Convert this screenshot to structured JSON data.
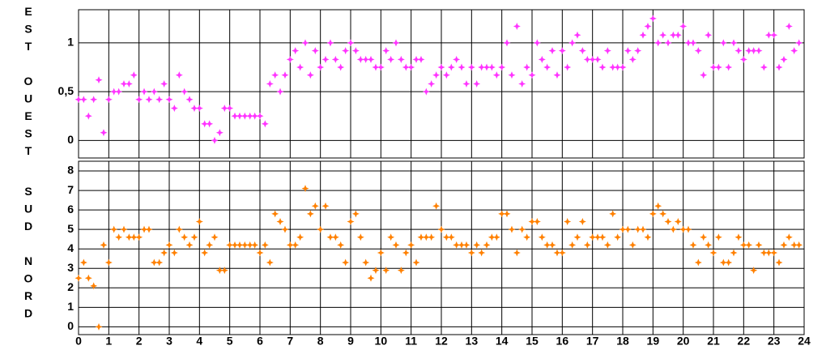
{
  "chart_data": [
    {
      "type": "scatter",
      "axis_label": [
        "EST",
        "OUEST"
      ],
      "xlim": [
        0,
        24
      ],
      "xticks": [
        0,
        1,
        2,
        3,
        4,
        5,
        6,
        7,
        8,
        9,
        10,
        11,
        12,
        13,
        14,
        15,
        16,
        17,
        18,
        19,
        20,
        21,
        22,
        23,
        24
      ],
      "ylim": [
        -0.18,
        1.34
      ],
      "yticks": [
        0,
        {
          "value": 0.5,
          "label": "0,5"
        },
        1
      ],
      "grid": true,
      "series": [
        {
          "color": "#ff33ff",
          "x": [
            0,
            0.17,
            0.33,
            0.5,
            0.67,
            0.83,
            1,
            1.17,
            1.33,
            1.5,
            1.67,
            1.83,
            2,
            2.17,
            2.33,
            2.5,
            2.67,
            2.83,
            3,
            3.17,
            3.33,
            3.5,
            3.67,
            3.83,
            4,
            4.17,
            4.33,
            4.5,
            4.67,
            4.83,
            5,
            5.17,
            5.33,
            5.5,
            5.67,
            5.83,
            6,
            6.17,
            6.33,
            6.5,
            6.67,
            6.83,
            7,
            7.17,
            7.33,
            7.5,
            7.67,
            7.83,
            8,
            8.17,
            8.33,
            8.5,
            8.67,
            8.83,
            9,
            9.17,
            9.33,
            9.5,
            9.67,
            9.83,
            10,
            10.17,
            10.33,
            10.5,
            10.67,
            10.83,
            11,
            11.17,
            11.33,
            11.5,
            11.67,
            11.83,
            12,
            12.17,
            12.33,
            12.5,
            12.67,
            12.83,
            13,
            13.17,
            13.33,
            13.5,
            13.67,
            13.83,
            14,
            14.17,
            14.33,
            14.5,
            14.67,
            14.83,
            15,
            15.17,
            15.33,
            15.5,
            15.67,
            15.83,
            16,
            16.17,
            16.33,
            16.5,
            16.67,
            16.83,
            17,
            17.17,
            17.33,
            17.5,
            17.67,
            17.83,
            18,
            18.17,
            18.33,
            18.5,
            18.67,
            18.83,
            19,
            19.17,
            19.33,
            19.5,
            19.67,
            19.83,
            20,
            20.17,
            20.33,
            20.5,
            20.67,
            20.83,
            21,
            21.17,
            21.33,
            21.5,
            21.67,
            21.83,
            22,
            22.17,
            22.33,
            22.5,
            22.67,
            22.83,
            23,
            23.17,
            23.33,
            23.5,
            23.67,
            23.83
          ],
          "values": [
            0.42,
            0.42,
            0.25,
            0.42,
            0.62,
            0.08,
            0.42,
            0.5,
            0.5,
            0.58,
            0.58,
            0.67,
            0.42,
            0.5,
            0.42,
            0.5,
            0.42,
            0.58,
            0.42,
            0.33,
            0.67,
            0.5,
            0.42,
            0.33,
            0.33,
            0.17,
            0.17,
            0,
            0.08,
            0.33,
            0.33,
            0.25,
            0.25,
            0.25,
            0.25,
            0.25,
            0.25,
            0.17,
            0.58,
            0.67,
            0.5,
            0.67,
            0.83,
            0.92,
            0.75,
            1,
            0.67,
            0.92,
            0.75,
            0.83,
            1,
            0.83,
            0.75,
            0.92,
            1,
            0.92,
            0.83,
            0.83,
            0.83,
            0.75,
            0.75,
            0.92,
            0.83,
            1,
            0.83,
            0.75,
            0.75,
            0.83,
            0.83,
            0.5,
            0.58,
            0.67,
            0.75,
            0.67,
            0.75,
            0.83,
            0.75,
            0.58,
            0.75,
            0.58,
            0.75,
            0.75,
            0.75,
            0.67,
            0.75,
            1,
            0.67,
            1.17,
            0.58,
            0.75,
            0.67,
            1,
            0.83,
            0.75,
            0.92,
            0.67,
            0.92,
            0.75,
            1,
            1.08,
            0.92,
            0.83,
            0.83,
            0.83,
            0.75,
            0.92,
            0.75,
            0.75,
            0.75,
            0.92,
            0.83,
            0.92,
            1.08,
            1.17,
            1.25,
            1,
            1.08,
            1,
            1.08,
            1.08,
            1.17,
            1,
            1,
            0.92,
            0.67,
            1.08,
            0.75,
            0.75,
            1,
            0.75,
            1,
            0.92,
            0.83,
            0.92,
            0.92,
            0.92,
            0.75,
            1.08,
            1.08,
            0.75,
            0.83,
            1.17,
            0.92,
            1
          ]
        }
      ]
    },
    {
      "type": "scatter",
      "axis_label": [
        "SUD",
        "NORD"
      ],
      "xlim": [
        0,
        24
      ],
      "xticks": [
        0,
        1,
        2,
        3,
        4,
        5,
        6,
        7,
        8,
        9,
        10,
        11,
        12,
        13,
        14,
        15,
        16,
        17,
        18,
        19,
        20,
        21,
        22,
        23,
        24
      ],
      "ylim": [
        -0.4,
        8.5
      ],
      "yticks": [
        0,
        1,
        2,
        3,
        4,
        5,
        6,
        7,
        8
      ],
      "grid": true,
      "series": [
        {
          "color": "#ff8000",
          "x": [
            0,
            0.17,
            0.33,
            0.5,
            0.67,
            0.83,
            1,
            1.17,
            1.33,
            1.5,
            1.67,
            1.83,
            2,
            2.17,
            2.33,
            2.5,
            2.67,
            2.83,
            3,
            3.17,
            3.33,
            3.5,
            3.67,
            3.83,
            4,
            4.17,
            4.33,
            4.5,
            4.67,
            4.83,
            5,
            5.17,
            5.33,
            5.5,
            5.67,
            5.83,
            6,
            6.17,
            6.33,
            6.5,
            6.67,
            6.83,
            7,
            7.17,
            7.33,
            7.5,
            7.67,
            7.83,
            8,
            8.17,
            8.33,
            8.5,
            8.67,
            8.83,
            9,
            9.17,
            9.33,
            9.5,
            9.67,
            9.83,
            10,
            10.17,
            10.33,
            10.5,
            10.67,
            10.83,
            11,
            11.17,
            11.33,
            11.5,
            11.67,
            11.83,
            12,
            12.17,
            12.33,
            12.5,
            12.67,
            12.83,
            13,
            13.17,
            13.33,
            13.5,
            13.67,
            13.83,
            14,
            14.17,
            14.33,
            14.5,
            14.67,
            14.83,
            15,
            15.17,
            15.33,
            15.5,
            15.67,
            15.83,
            16,
            16.17,
            16.33,
            16.5,
            16.67,
            16.83,
            17,
            17.17,
            17.33,
            17.5,
            17.67,
            17.83,
            18,
            18.17,
            18.33,
            18.5,
            18.67,
            18.83,
            19,
            19.17,
            19.33,
            19.5,
            19.67,
            19.83,
            20,
            20.17,
            20.33,
            20.5,
            20.67,
            20.83,
            21,
            21.17,
            21.33,
            21.5,
            21.67,
            21.83,
            22,
            22.17,
            22.33,
            22.5,
            22.67,
            22.83,
            23,
            23.17,
            23.33,
            23.5,
            23.67,
            23.83
          ],
          "values": [
            2.5,
            3.3,
            2.5,
            2.1,
            0,
            4.2,
            3.3,
            5,
            4.6,
            5,
            4.6,
            4.6,
            4.6,
            5,
            5,
            3.3,
            3.3,
            3.8,
            4.2,
            3.8,
            5,
            4.6,
            4.2,
            4.6,
            5.4,
            3.8,
            4.2,
            4.6,
            2.9,
            2.9,
            4.2,
            4.2,
            4.2,
            4.2,
            4.2,
            4.2,
            3.8,
            4.2,
            3.3,
            5.8,
            5.4,
            5,
            4.2,
            4.2,
            4.6,
            7.1,
            5.8,
            6.2,
            5,
            6.2,
            4.6,
            4.6,
            4.2,
            3.3,
            5.4,
            5.8,
            4.6,
            3.3,
            2.5,
            2.9,
            3.8,
            2.9,
            4.6,
            4.2,
            2.9,
            3.8,
            4.2,
            3.3,
            4.6,
            4.6,
            4.6,
            6.2,
            5,
            4.6,
            4.6,
            4.2,
            4.2,
            4.2,
            3.8,
            4.2,
            3.8,
            4.2,
            4.6,
            4.6,
            5.8,
            5.8,
            5,
            3.8,
            5,
            4.6,
            5.4,
            5.4,
            4.6,
            4.2,
            4.2,
            3.8,
            3.8,
            5.4,
            4.2,
            4.6,
            5.4,
            4.2,
            4.6,
            4.6,
            4.6,
            4.2,
            5.8,
            4.6,
            5,
            5,
            4.2,
            5,
            5,
            4.6,
            5.8,
            6.2,
            5.8,
            5.4,
            5,
            5.4,
            5,
            5,
            4.2,
            3.3,
            4.6,
            4.2,
            3.8,
            4.6,
            3.3,
            3.3,
            3.8,
            4.6,
            4.2,
            4.2,
            2.9,
            4.2,
            3.8,
            3.8,
            3.8,
            3.3,
            4.2,
            4.6,
            4.2,
            4.2
          ]
        }
      ]
    }
  ]
}
